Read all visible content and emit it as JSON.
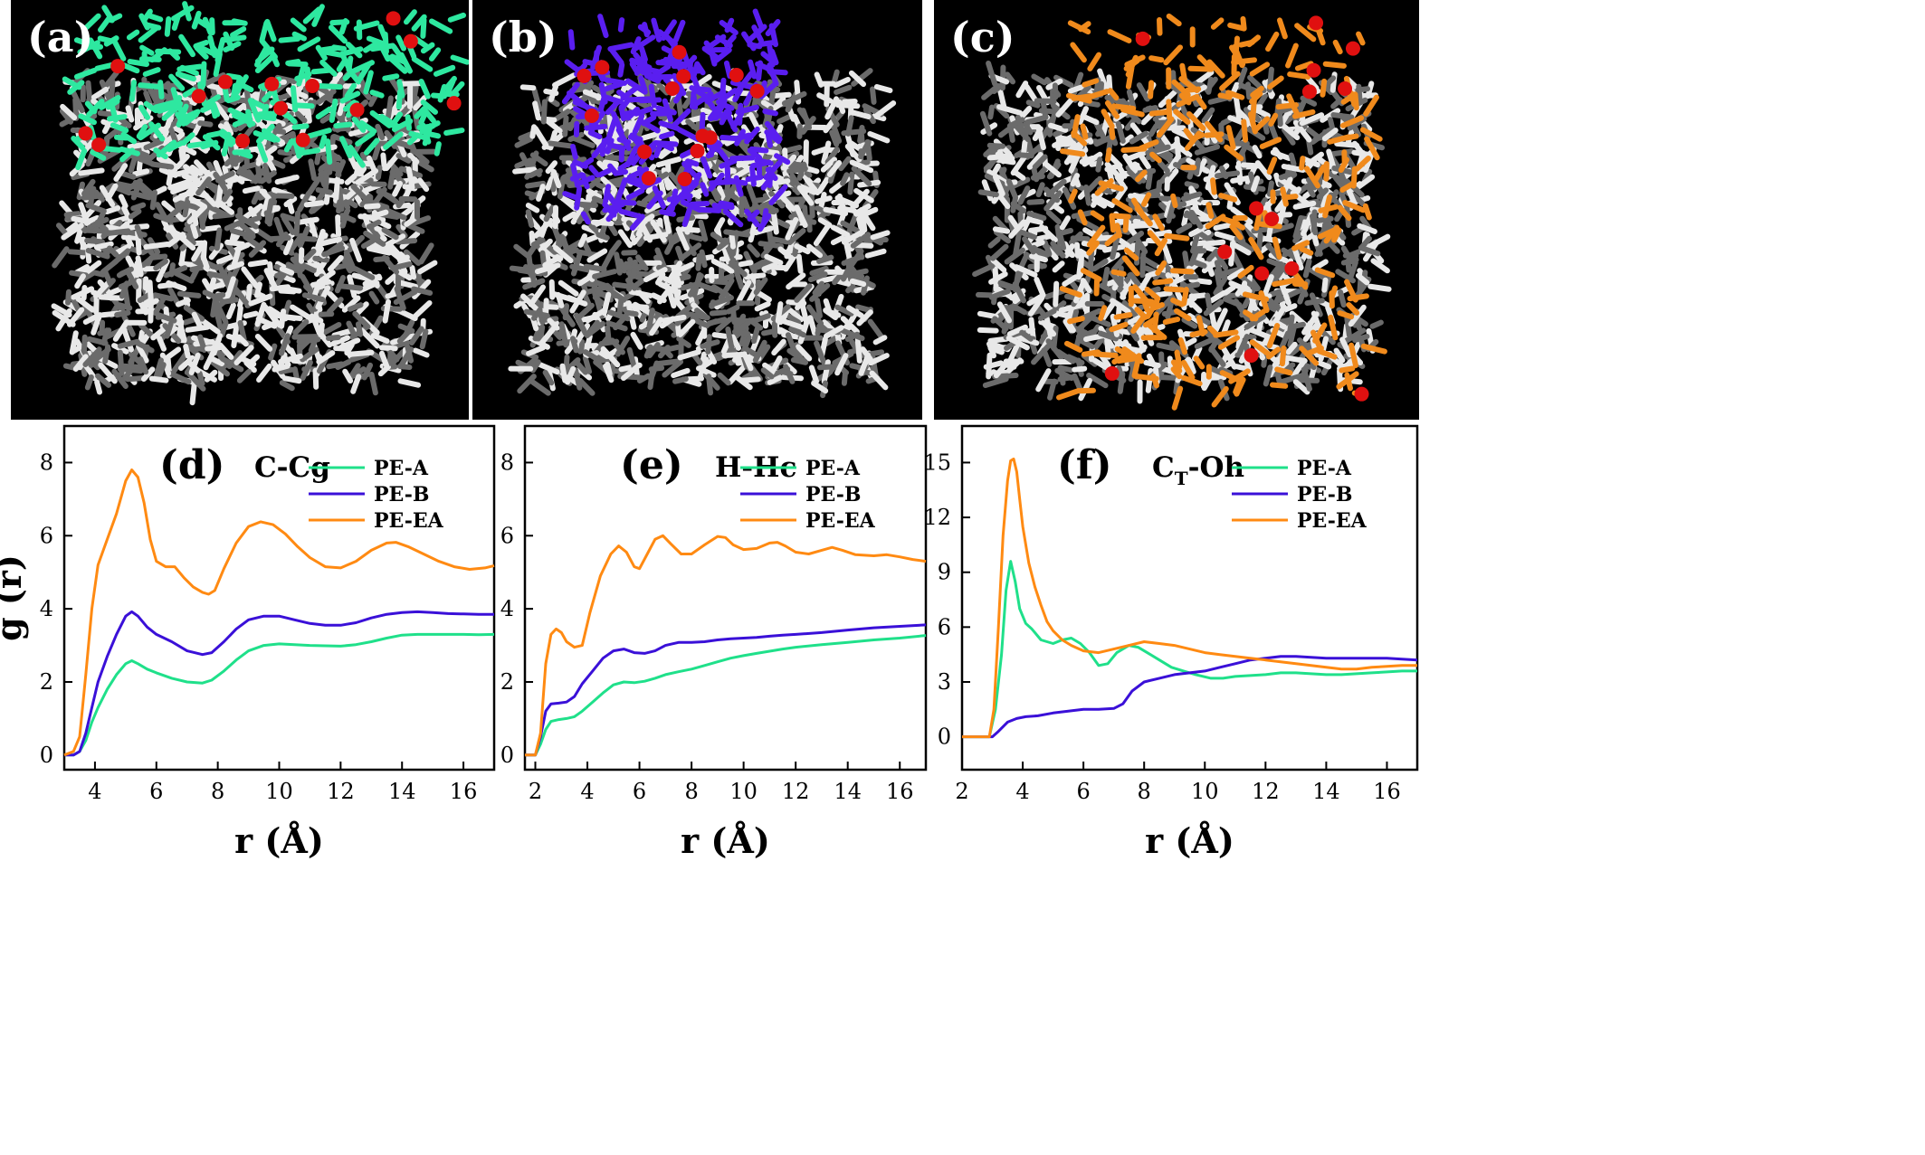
{
  "snapshots": [
    {
      "label": "(a)",
      "color": "#2ee8a0",
      "name": "PE-A"
    },
    {
      "label": "(b)",
      "color": "#5a1ef0",
      "name": "PE-B"
    },
    {
      "label": "(c)",
      "color": "#f08a1c",
      "name": "PE-EA"
    }
  ],
  "colors": {
    "PE-A": "#1fe08a",
    "PE-B": "#3a10d8",
    "PE-EA": "#ff8a12"
  },
  "chart_data": [
    {
      "type": "line",
      "panel": "(d)",
      "title": "C-Cg",
      "xlabel": "r (Å)",
      "ylabel": "g (r)",
      "xlim": [
        3,
        17
      ],
      "ylim": [
        -0.4,
        9
      ],
      "xticks": [
        4,
        6,
        8,
        10,
        12,
        14,
        16
      ],
      "yticks": [
        0,
        2,
        4,
        6,
        8
      ],
      "legend": "top-right",
      "series": [
        {
          "name": "PE-A",
          "x": [
            3.0,
            3.3,
            3.5,
            3.7,
            3.9,
            4.1,
            4.4,
            4.7,
            5.0,
            5.2,
            5.4,
            5.7,
            6.0,
            6.5,
            7.0,
            7.5,
            7.8,
            8.2,
            8.6,
            9.0,
            9.5,
            10.0,
            10.5,
            11.0,
            11.5,
            12.0,
            12.5,
            13.0,
            13.5,
            14.0,
            14.5,
            15.0,
            15.5,
            16.0,
            16.5,
            17.0
          ],
          "y": [
            0,
            0,
            0.1,
            0.4,
            0.9,
            1.3,
            1.8,
            2.2,
            2.5,
            2.58,
            2.5,
            2.35,
            2.25,
            2.1,
            2.0,
            1.97,
            2.05,
            2.3,
            2.6,
            2.85,
            3.0,
            3.04,
            3.02,
            3.0,
            2.99,
            2.98,
            3.02,
            3.1,
            3.2,
            3.28,
            3.3,
            3.3,
            3.3,
            3.3,
            3.29,
            3.3
          ]
        },
        {
          "name": "PE-B",
          "x": [
            3.0,
            3.3,
            3.5,
            3.7,
            3.9,
            4.1,
            4.4,
            4.7,
            5.0,
            5.2,
            5.4,
            5.7,
            6.0,
            6.5,
            7.0,
            7.5,
            7.8,
            8.2,
            8.6,
            9.0,
            9.5,
            10.0,
            10.5,
            11.0,
            11.5,
            12.0,
            12.5,
            13.0,
            13.5,
            14.0,
            14.5,
            15.0,
            15.5,
            16.0,
            16.5,
            17.0
          ],
          "y": [
            0,
            0,
            0.1,
            0.6,
            1.3,
            2.0,
            2.7,
            3.3,
            3.8,
            3.92,
            3.8,
            3.5,
            3.3,
            3.1,
            2.85,
            2.75,
            2.8,
            3.1,
            3.45,
            3.7,
            3.8,
            3.8,
            3.7,
            3.6,
            3.55,
            3.55,
            3.62,
            3.75,
            3.85,
            3.9,
            3.92,
            3.9,
            3.87,
            3.86,
            3.85,
            3.85
          ]
        },
        {
          "name": "PE-EA",
          "x": [
            3.0,
            3.3,
            3.5,
            3.7,
            3.9,
            4.1,
            4.4,
            4.7,
            5.0,
            5.2,
            5.4,
            5.6,
            5.8,
            6.0,
            6.3,
            6.6,
            6.9,
            7.2,
            7.5,
            7.7,
            7.9,
            8.2,
            8.6,
            9.0,
            9.4,
            9.8,
            10.2,
            10.6,
            11.0,
            11.5,
            12.0,
            12.5,
            13.0,
            13.5,
            13.8,
            14.2,
            14.7,
            15.2,
            15.7,
            16.2,
            16.7,
            17.0
          ],
          "y": [
            0,
            0.1,
            0.5,
            2.2,
            4.0,
            5.2,
            5.9,
            6.6,
            7.5,
            7.8,
            7.6,
            6.9,
            5.9,
            5.3,
            5.15,
            5.15,
            4.85,
            4.6,
            4.45,
            4.4,
            4.5,
            5.1,
            5.8,
            6.25,
            6.38,
            6.3,
            6.05,
            5.7,
            5.4,
            5.15,
            5.12,
            5.3,
            5.6,
            5.8,
            5.82,
            5.7,
            5.5,
            5.3,
            5.15,
            5.08,
            5.12,
            5.18
          ]
        }
      ]
    },
    {
      "type": "line",
      "panel": "(e)",
      "title": "H-Hc",
      "xlabel": "r (Å)",
      "ylabel": "",
      "xlim": [
        1.6,
        17
      ],
      "ylim": [
        -0.4,
        9
      ],
      "xticks": [
        2,
        4,
        6,
        8,
        10,
        12,
        14,
        16
      ],
      "yticks": [
        0,
        2,
        4,
        6,
        8
      ],
      "legend": "top-right",
      "series": [
        {
          "name": "PE-A",
          "x": [
            1.6,
            2.0,
            2.2,
            2.4,
            2.6,
            2.9,
            3.2,
            3.5,
            3.8,
            4.2,
            4.6,
            5.0,
            5.4,
            5.8,
            6.2,
            6.6,
            7.0,
            7.5,
            8.0,
            8.5,
            9.0,
            9.5,
            10.0,
            10.5,
            11.0,
            11.5,
            12.0,
            13.0,
            14.0,
            15.0,
            16.0,
            17.0
          ],
          "y": [
            0,
            0,
            0.3,
            0.7,
            0.92,
            0.97,
            1.0,
            1.05,
            1.2,
            1.45,
            1.7,
            1.92,
            2.0,
            1.98,
            2.02,
            2.1,
            2.2,
            2.28,
            2.35,
            2.45,
            2.55,
            2.65,
            2.72,
            2.78,
            2.84,
            2.9,
            2.95,
            3.02,
            3.08,
            3.15,
            3.2,
            3.27
          ]
        },
        {
          "name": "PE-B",
          "x": [
            1.6,
            2.0,
            2.2,
            2.4,
            2.6,
            2.9,
            3.2,
            3.5,
            3.8,
            4.2,
            4.6,
            5.0,
            5.4,
            5.8,
            6.2,
            6.6,
            7.0,
            7.5,
            8.0,
            8.5,
            9.0,
            9.5,
            10.0,
            10.5,
            11.0,
            11.5,
            12.0,
            13.0,
            14.0,
            15.0,
            16.0,
            17.0
          ],
          "y": [
            0,
            0,
            0.5,
            1.2,
            1.4,
            1.42,
            1.45,
            1.6,
            1.95,
            2.3,
            2.65,
            2.85,
            2.9,
            2.8,
            2.78,
            2.85,
            3.0,
            3.08,
            3.08,
            3.1,
            3.15,
            3.18,
            3.2,
            3.22,
            3.25,
            3.28,
            3.3,
            3.35,
            3.42,
            3.48,
            3.52,
            3.56
          ]
        },
        {
          "name": "PE-EA",
          "x": [
            1.6,
            2.0,
            2.2,
            2.4,
            2.6,
            2.8,
            3.0,
            3.2,
            3.5,
            3.8,
            4.1,
            4.5,
            4.9,
            5.2,
            5.5,
            5.8,
            6.0,
            6.3,
            6.6,
            6.9,
            7.2,
            7.6,
            8.0,
            8.5,
            9.0,
            9.3,
            9.6,
            10.0,
            10.5,
            11.0,
            11.3,
            11.6,
            12.0,
            12.5,
            13.0,
            13.4,
            13.8,
            14.3,
            15.0,
            15.5,
            16.0,
            16.5,
            17.0
          ],
          "y": [
            0,
            0,
            0.6,
            2.5,
            3.3,
            3.45,
            3.35,
            3.1,
            2.95,
            3.0,
            3.9,
            4.9,
            5.5,
            5.72,
            5.55,
            5.15,
            5.1,
            5.5,
            5.9,
            6.0,
            5.78,
            5.5,
            5.5,
            5.75,
            5.98,
            5.95,
            5.75,
            5.62,
            5.65,
            5.8,
            5.82,
            5.72,
            5.55,
            5.5,
            5.6,
            5.68,
            5.6,
            5.48,
            5.45,
            5.48,
            5.42,
            5.35,
            5.3
          ]
        }
      ]
    },
    {
      "type": "line",
      "panel": "(f)",
      "title": "CT-Oh",
      "title_main": "C",
      "title_sub": "T",
      "title_rest": "-Oh",
      "xlabel": "r (Å)",
      "ylabel": "",
      "xlim": [
        2,
        17
      ],
      "ylim": [
        -1.8,
        17
      ],
      "xticks": [
        2,
        4,
        6,
        8,
        10,
        12,
        14,
        16
      ],
      "yticks": [
        0,
        3,
        6,
        9,
        12,
        15
      ],
      "legend": "top-right",
      "series": [
        {
          "name": "PE-A",
          "x": [
            2.0,
            2.5,
            2.9,
            3.1,
            3.3,
            3.45,
            3.6,
            3.75,
            3.9,
            4.1,
            4.3,
            4.6,
            5.0,
            5.3,
            5.6,
            5.9,
            6.2,
            6.5,
            6.8,
            7.1,
            7.5,
            7.8,
            8.1,
            8.5,
            8.9,
            9.3,
            9.7,
            10.2,
            10.6,
            11.0,
            11.5,
            12.0,
            12.5,
            13.0,
            13.5,
            14.0,
            14.5,
            15.0,
            15.5,
            16.0,
            16.5,
            17.0
          ],
          "y": [
            0,
            0,
            0,
            1.5,
            4.5,
            8.0,
            9.6,
            8.5,
            7.0,
            6.2,
            5.9,
            5.3,
            5.1,
            5.3,
            5.4,
            5.1,
            4.6,
            3.9,
            4.0,
            4.6,
            5.0,
            4.9,
            4.6,
            4.2,
            3.8,
            3.6,
            3.4,
            3.2,
            3.2,
            3.3,
            3.35,
            3.4,
            3.5,
            3.5,
            3.45,
            3.4,
            3.4,
            3.45,
            3.5,
            3.55,
            3.6,
            3.6
          ]
        },
        {
          "name": "PE-B",
          "x": [
            2.0,
            2.5,
            3.0,
            3.2,
            3.5,
            3.8,
            4.1,
            4.5,
            5.0,
            5.5,
            6.0,
            6.5,
            7.0,
            7.3,
            7.6,
            8.0,
            8.5,
            9.0,
            9.5,
            10.0,
            10.5,
            11.0,
            11.5,
            12.0,
            12.5,
            13.0,
            13.5,
            14.0,
            14.5,
            15.0,
            15.5,
            16.0,
            16.5,
            17.0
          ],
          "y": [
            0,
            0,
            0,
            0.3,
            0.8,
            1.0,
            1.1,
            1.15,
            1.3,
            1.4,
            1.5,
            1.5,
            1.55,
            1.8,
            2.5,
            3.0,
            3.2,
            3.4,
            3.5,
            3.6,
            3.8,
            4.0,
            4.2,
            4.3,
            4.4,
            4.4,
            4.35,
            4.3,
            4.3,
            4.3,
            4.3,
            4.3,
            4.25,
            4.2
          ]
        },
        {
          "name": "PE-EA",
          "x": [
            2.0,
            2.5,
            2.9,
            3.05,
            3.2,
            3.35,
            3.5,
            3.6,
            3.7,
            3.8,
            3.9,
            4.0,
            4.2,
            4.4,
            4.6,
            4.8,
            5.0,
            5.3,
            5.6,
            6.0,
            6.5,
            7.0,
            7.5,
            8.0,
            8.5,
            9.0,
            9.5,
            10.0,
            10.5,
            11.0,
            11.5,
            12.0,
            12.5,
            13.0,
            13.5,
            14.0,
            14.5,
            15.0,
            15.5,
            16.0,
            16.5,
            17.0
          ],
          "y": [
            0,
            0,
            0,
            1.5,
            6.0,
            11.0,
            14.0,
            15.1,
            15.2,
            14.5,
            13.0,
            11.5,
            9.5,
            8.2,
            7.2,
            6.3,
            5.8,
            5.3,
            5.0,
            4.7,
            4.6,
            4.8,
            5.0,
            5.2,
            5.1,
            5.0,
            4.8,
            4.6,
            4.5,
            4.4,
            4.3,
            4.2,
            4.1,
            4.0,
            3.9,
            3.8,
            3.7,
            3.7,
            3.8,
            3.85,
            3.9,
            3.9
          ]
        }
      ]
    }
  ]
}
